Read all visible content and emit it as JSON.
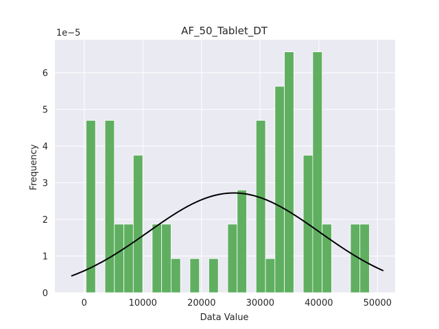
{
  "chart_data": {
    "type": "bar",
    "subtype": "histogram_with_normal_fit",
    "title": "AF_50_Tablet_DT",
    "xlabel": "Data Value",
    "ylabel": "Frequency",
    "y_offset_label": "1e−5",
    "xlim": [
      -5000,
      53000
    ],
    "ylim": [
      0,
      6.9
    ],
    "x_ticks": [
      0,
      10000,
      20000,
      30000,
      40000,
      50000
    ],
    "x_tick_labels": [
      "0",
      "10000",
      "20000",
      "30000",
      "40000",
      "50000"
    ],
    "y_ticks": [
      0,
      1,
      2,
      3,
      4,
      5,
      6
    ],
    "y_tick_labels": [
      "0",
      "1",
      "2",
      "3",
      "4",
      "5",
      "6"
    ],
    "grid": true,
    "background": "#eaeaf2",
    "bar_color": "#4ca64c",
    "curve_color": "#000000",
    "bins": [
      {
        "x0": 319,
        "x1": 1929,
        "value": 4.7
      },
      {
        "x0": 1929,
        "x1": 3539,
        "value": 0
      },
      {
        "x0": 3539,
        "x1": 5148,
        "value": 4.7
      },
      {
        "x0": 5148,
        "x1": 6758,
        "value": 1.87
      },
      {
        "x0": 6758,
        "x1": 8368,
        "value": 1.87
      },
      {
        "x0": 8368,
        "x1": 9978,
        "value": 3.75
      },
      {
        "x0": 9978,
        "x1": 11588,
        "value": 0
      },
      {
        "x0": 11588,
        "x1": 13198,
        "value": 1.87
      },
      {
        "x0": 13198,
        "x1": 14807,
        "value": 1.87
      },
      {
        "x0": 14807,
        "x1": 16417,
        "value": 0.93
      },
      {
        "x0": 16417,
        "x1": 18027,
        "value": 0
      },
      {
        "x0": 18027,
        "x1": 19637,
        "value": 0.93
      },
      {
        "x0": 19637,
        "x1": 21247,
        "value": 0
      },
      {
        "x0": 21247,
        "x1": 22857,
        "value": 0.93
      },
      {
        "x0": 22857,
        "x1": 24466,
        "value": 0
      },
      {
        "x0": 24466,
        "x1": 26076,
        "value": 1.87
      },
      {
        "x0": 26076,
        "x1": 27686,
        "value": 2.8
      },
      {
        "x0": 27686,
        "x1": 29296,
        "value": 0
      },
      {
        "x0": 29296,
        "x1": 30906,
        "value": 4.7
      },
      {
        "x0": 30906,
        "x1": 32516,
        "value": 0.93
      },
      {
        "x0": 32516,
        "x1": 34126,
        "value": 5.63
      },
      {
        "x0": 34126,
        "x1": 35735,
        "value": 6.57
      },
      {
        "x0": 35735,
        "x1": 37345,
        "value": 0
      },
      {
        "x0": 37345,
        "x1": 38955,
        "value": 3.75
      },
      {
        "x0": 38955,
        "x1": 40565,
        "value": 6.57
      },
      {
        "x0": 40565,
        "x1": 42175,
        "value": 1.87
      },
      {
        "x0": 42175,
        "x1": 43785,
        "value": 0
      },
      {
        "x0": 43785,
        "x1": 45394,
        "value": 0
      },
      {
        "x0": 45394,
        "x1": 47004,
        "value": 1.87
      },
      {
        "x0": 47004,
        "x1": 48614,
        "value": 1.87
      }
    ],
    "normal_fit": {
      "mean": 25500,
      "std": 14650,
      "x_range": [
        -2200,
        51000
      ],
      "peak": 2.72
    }
  }
}
